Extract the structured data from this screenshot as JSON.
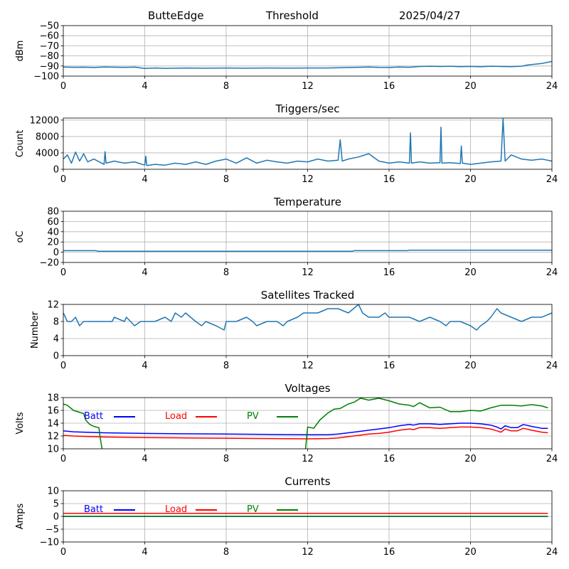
{
  "header": {
    "station": "ButteEdge",
    "mode": "Threshold",
    "date": "2025/04/27"
  },
  "chart_data": [
    {
      "type": "line",
      "title": "",
      "xlabel": "",
      "ylabel": "dBm",
      "xlim": [
        0,
        24
      ],
      "ylim": [
        -100,
        -50
      ],
      "xticks": [
        0,
        4,
        8,
        12,
        16,
        20,
        24
      ],
      "yticks": [
        -100,
        -90,
        -80,
        -70,
        -60,
        -50
      ],
      "grid": true,
      "series": [
        {
          "color": "#1f77b4",
          "x": [
            0,
            0.5,
            1,
            1.5,
            2,
            2.5,
            3,
            3.5,
            4,
            4.5,
            5,
            6,
            7,
            8,
            9,
            10,
            11,
            12,
            13,
            14,
            14.5,
            15,
            15.5,
            16,
            16.5,
            17,
            17.5,
            18,
            18.5,
            19,
            19.5,
            20,
            20.5,
            21,
            21.5,
            22,
            22.5,
            22.8,
            23,
            23.5,
            24
          ],
          "y": [
            -91,
            -91.3,
            -91.2,
            -91.5,
            -91,
            -91.2,
            -91.4,
            -91.1,
            -92.5,
            -92,
            -92.3,
            -92,
            -92.2,
            -92,
            -92.2,
            -92,
            -92.1,
            -92,
            -92,
            -91.5,
            -91.3,
            -91,
            -91.4,
            -91.5,
            -91,
            -91.3,
            -90.5,
            -90.2,
            -90.5,
            -90.3,
            -90.6,
            -90.4,
            -90.8,
            -90.2,
            -90.5,
            -90.6,
            -90.2,
            -89,
            -88.5,
            -87.5,
            -85.5
          ]
        }
      ]
    },
    {
      "type": "line",
      "title": "Triggers/sec",
      "xlabel": "",
      "ylabel": "Count",
      "xlim": [
        0,
        24
      ],
      "ylim": [
        0,
        12500
      ],
      "xticks": [
        0,
        4,
        8,
        12,
        16,
        20,
        24
      ],
      "yticks": [
        0,
        4000,
        8000,
        12000
      ],
      "grid": true,
      "series": [
        {
          "color": "#1f77b4",
          "x": [
            0,
            0.2,
            0.4,
            0.6,
            0.8,
            1.0,
            1.2,
            1.5,
            2.0,
            2.05,
            2.1,
            2.5,
            3.0,
            3.5,
            4.0,
            4.05,
            4.1,
            4.5,
            5.0,
            5.5,
            6.0,
            6.5,
            7.0,
            7.5,
            8.0,
            8.5,
            9.0,
            9.5,
            10.0,
            10.5,
            11.0,
            11.5,
            12.0,
            12.5,
            13.0,
            13.5,
            13.6,
            13.7,
            14.0,
            14.5,
            15.0,
            15.5,
            16.0,
            16.5,
            17.0,
            17.05,
            17.1,
            17.5,
            18.0,
            18.5,
            18.55,
            18.6,
            19.0,
            19.5,
            19.55,
            19.6,
            20.0,
            20.5,
            21.0,
            21.5,
            21.6,
            21.7,
            22.0,
            22.5,
            23.0,
            23.5,
            24.0
          ],
          "y": [
            2500,
            3500,
            1500,
            4200,
            2000,
            3800,
            1800,
            2500,
            1200,
            4300,
            1500,
            2000,
            1500,
            1800,
            1000,
            3200,
            900,
            1200,
            1000,
            1500,
            1200,
            1800,
            1200,
            2000,
            2500,
            1500,
            2800,
            1500,
            2200,
            1800,
            1500,
            2000,
            1800,
            2500,
            2000,
            2200,
            7200,
            2000,
            2500,
            3000,
            3800,
            2000,
            1500,
            1800,
            1500,
            8900,
            1500,
            1800,
            1500,
            1600,
            10300,
            1500,
            1600,
            1400,
            5700,
            1500,
            1200,
            1500,
            1800,
            2000,
            12400,
            2000,
            3500,
            2500,
            2200,
            2500,
            2000
          ]
        }
      ]
    },
    {
      "type": "line",
      "title": "Temperature",
      "xlabel": "",
      "ylabel": "oC",
      "xlim": [
        0,
        24
      ],
      "ylim": [
        -20,
        80
      ],
      "xticks": [
        0,
        4,
        8,
        12,
        16,
        20,
        24
      ],
      "yticks": [
        -20,
        0,
        20,
        40,
        60,
        80
      ],
      "grid": true,
      "series": [
        {
          "color": "#1f77b4",
          "x": [
            0,
            1.6,
            1.7,
            14.2,
            14.3,
            16.9,
            17.0,
            24
          ],
          "y": [
            3,
            3,
            2,
            2,
            3,
            3,
            4,
            4
          ]
        }
      ]
    },
    {
      "type": "line",
      "title": "Satellites Tracked",
      "xlabel": "",
      "ylabel": "Number",
      "xlim": [
        0,
        24
      ],
      "ylim": [
        0,
        12
      ],
      "xticks": [
        0,
        4,
        8,
        12,
        16,
        20,
        24
      ],
      "yticks": [
        0,
        4,
        8,
        12
      ],
      "grid": true,
      "series": [
        {
          "color": "#1f77b4",
          "x": [
            0,
            0.1,
            0.2,
            0.3,
            0.4,
            0.6,
            0.7,
            0.8,
            1.0,
            1.5,
            2.0,
            2.4,
            2.5,
            3.0,
            3.1,
            3.3,
            3.5,
            3.8,
            4.0,
            4.5,
            5.0,
            5.3,
            5.5,
            5.8,
            6.0,
            6.5,
            6.8,
            7.0,
            7.5,
            7.9,
            8.0,
            8.5,
            9.0,
            9.3,
            9.5,
            10.0,
            10.5,
            10.8,
            11.0,
            11.5,
            11.8,
            12.0,
            12.5,
            13.0,
            13.5,
            14.0,
            14.5,
            14.6,
            14.7,
            15.0,
            15.5,
            15.8,
            16.0,
            16.5,
            17.0,
            17.5,
            18.0,
            18.5,
            18.8,
            19.0,
            19.5,
            20.0,
            20.3,
            20.5,
            20.8,
            21.0,
            21.3,
            21.5,
            22.0,
            22.5,
            23.0,
            23.5,
            24.0
          ],
          "y": [
            10,
            9,
            8,
            8,
            8,
            9,
            8,
            7,
            8,
            8,
            8,
            8,
            9,
            8,
            9,
            8,
            7,
            8,
            8,
            8,
            9,
            8,
            10,
            9,
            10,
            8,
            7,
            8,
            7,
            6,
            8,
            8,
            9,
            8,
            7,
            8,
            8,
            7,
            8,
            9,
            10,
            10,
            10,
            11,
            11,
            10,
            12,
            11,
            10,
            9,
            9,
            10,
            9,
            9,
            9,
            8,
            9,
            8,
            7,
            8,
            8,
            7,
            6,
            7,
            8,
            9,
            11,
            10,
            9,
            8,
            9,
            9,
            10
          ]
        }
      ]
    },
    {
      "type": "line",
      "title": "Voltages",
      "xlabel": "",
      "ylabel": "Volts",
      "xlim": [
        0,
        24
      ],
      "ylim": [
        10,
        18
      ],
      "xticks": [
        0,
        4,
        8,
        12,
        16,
        20,
        24
      ],
      "yticks": [
        10,
        12,
        14,
        16,
        18
      ],
      "grid": true,
      "legend": "top",
      "series": [
        {
          "name": "Batt",
          "color": "#0000ff",
          "x": [
            0,
            0.5,
            1,
            2,
            4,
            6,
            8,
            10,
            12,
            13,
            13.5,
            14,
            14.5,
            15,
            15.5,
            16,
            16.5,
            17,
            17.2,
            17.5,
            18,
            18.5,
            19,
            19.5,
            20,
            20.5,
            21,
            21.3,
            21.5,
            21.7,
            22,
            22.3,
            22.6,
            23,
            23.5,
            23.8
          ],
          "y": [
            12.8,
            12.65,
            12.6,
            12.5,
            12.4,
            12.35,
            12.3,
            12.25,
            12.2,
            12.2,
            12.3,
            12.5,
            12.7,
            12.9,
            13.1,
            13.3,
            13.6,
            13.8,
            13.7,
            13.9,
            13.9,
            13.8,
            13.9,
            14.0,
            14.0,
            13.9,
            13.7,
            13.4,
            13.1,
            13.6,
            13.3,
            13.3,
            13.8,
            13.5,
            13.2,
            13.2
          ]
        },
        {
          "name": "Load",
          "color": "#ff0000",
          "x": [
            0,
            0.5,
            1,
            2,
            4,
            6,
            8,
            10,
            12,
            13,
            13.5,
            14,
            14.5,
            15,
            15.5,
            16,
            16.5,
            17,
            17.2,
            17.5,
            18,
            18.5,
            19,
            19.5,
            20,
            20.5,
            21,
            21.3,
            21.5,
            21.7,
            22,
            22.3,
            22.6,
            23,
            23.5,
            23.8
          ],
          "y": [
            12.1,
            12.0,
            11.95,
            11.85,
            11.75,
            11.7,
            11.65,
            11.6,
            11.55,
            11.6,
            11.7,
            11.9,
            12.1,
            12.3,
            12.4,
            12.6,
            12.9,
            13.1,
            13.0,
            13.3,
            13.3,
            13.2,
            13.3,
            13.4,
            13.4,
            13.3,
            13.1,
            12.8,
            12.6,
            13.1,
            12.8,
            12.8,
            13.2,
            12.9,
            12.6,
            12.5
          ]
        },
        {
          "name": "PV",
          "color": "#008000",
          "x": [
            0,
            0.2,
            0.5,
            1,
            1.1,
            1.3,
            1.5,
            1.75,
            1.8,
            1.85,
            1.9
          ],
          "y": [
            17.0,
            16.8,
            16.0,
            15.5,
            14.5,
            13.8,
            13.5,
            13.3,
            12.0,
            11.0,
            10.0
          ]
        },
        {
          "name": "PV",
          "color": "#008000",
          "x": [
            11.9,
            12.0,
            12.3,
            12.6,
            13.0,
            13.3,
            13.6,
            14.0,
            14.3,
            14.6,
            15.0,
            15.5,
            16.0,
            16.5,
            17.0,
            17.2,
            17.5,
            18.0,
            18.5,
            19.0,
            19.5,
            20.0,
            20.5,
            21.0,
            21.5,
            22.0,
            22.5,
            23.0,
            23.5,
            23.8
          ],
          "y": [
            10.0,
            13.4,
            13.2,
            14.5,
            15.6,
            16.2,
            16.3,
            17.0,
            17.3,
            17.9,
            17.6,
            17.9,
            17.5,
            17.0,
            16.8,
            16.6,
            17.2,
            16.4,
            16.5,
            15.8,
            15.8,
            16.0,
            15.9,
            16.4,
            16.8,
            16.8,
            16.7,
            16.9,
            16.7,
            16.4
          ]
        }
      ]
    },
    {
      "type": "line",
      "title": "Currents",
      "xlabel": "",
      "ylabel": "Amps",
      "xlim": [
        0,
        24
      ],
      "ylim": [
        -10,
        10
      ],
      "xticks": [
        0,
        4,
        8,
        12,
        16,
        20,
        24
      ],
      "yticks": [
        -10,
        -5,
        0,
        5,
        10
      ],
      "grid": true,
      "legend": "top",
      "series": [
        {
          "name": "Batt",
          "color": "#0000ff",
          "x": [
            0,
            23.8
          ],
          "y": [
            0,
            0
          ]
        },
        {
          "name": "Load",
          "color": "#ff0000",
          "x": [
            0,
            23.8
          ],
          "y": [
            1.2,
            1.2
          ]
        },
        {
          "name": "PV",
          "color": "#008000",
          "x": [
            0,
            23.8
          ],
          "y": [
            0,
            0
          ]
        }
      ]
    }
  ]
}
